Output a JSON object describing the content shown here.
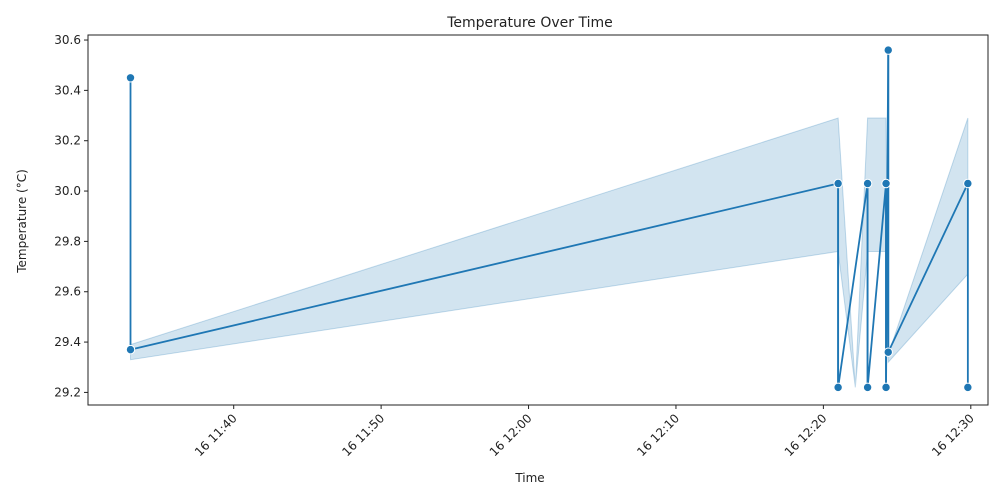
{
  "chart_data": {
    "type": "line",
    "title": "Temperature Over Time",
    "xlabel": "Time",
    "ylabel": "Temperature (°C)",
    "x_range": [
      "16 11:30:07",
      "16 12:31:10"
    ],
    "ylim": [
      29.15,
      30.62
    ],
    "y_ticks": [
      "29.2",
      "29.4",
      "29.6",
      "29.8",
      "30.0",
      "30.2",
      "30.4",
      "30.6"
    ],
    "x_ticks": [
      {
        "label": "16 11:40",
        "t": "11:40"
      },
      {
        "label": "16 11:50",
        "t": "11:50"
      },
      {
        "label": "16 12:00",
        "t": "12:00"
      },
      {
        "label": "16 12:10",
        "t": "12:10"
      },
      {
        "label": "16 12:20",
        "t": "12:20"
      },
      {
        "label": "16 12:30",
        "t": "12:30"
      }
    ],
    "grid": false,
    "colors": {
      "line": "#1f77b4",
      "band": "#1f77b4"
    },
    "points": [
      {
        "x": "11:33:00",
        "y": 30.45
      },
      {
        "x": "11:33:00",
        "y": 29.37
      },
      {
        "x": "12:21:00",
        "y": 30.03
      },
      {
        "x": "12:21:00",
        "y": 29.22
      },
      {
        "x": "12:23:00",
        "y": 30.03
      },
      {
        "x": "12:23:00",
        "y": 29.22
      },
      {
        "x": "12:24:15",
        "y": 30.03
      },
      {
        "x": "12:24:15",
        "y": 29.22
      },
      {
        "x": "12:24:24",
        "y": 30.56
      },
      {
        "x": "12:24:24",
        "y": 29.36
      },
      {
        "x": "12:29:48",
        "y": 30.03
      },
      {
        "x": "12:29:48",
        "y": 29.22
      }
    ],
    "mean_line": [
      {
        "x": "11:33:00",
        "y": 29.37
      },
      {
        "x": "12:21:00",
        "y": 30.03
      },
      {
        "x": "12:21:00",
        "y": 29.22
      },
      {
        "x": "12:23:00",
        "y": 30.03
      },
      {
        "x": "12:23:00",
        "y": 29.22
      },
      {
        "x": "12:24:15",
        "y": 30.03
      },
      {
        "x": "12:24:15",
        "y": 29.22
      },
      {
        "x": "12:24:24",
        "y": 30.56
      },
      {
        "x": "12:24:24",
        "y": 29.36
      },
      {
        "x": "12:29:48",
        "y": 30.03
      }
    ],
    "confidence_band": [
      {
        "x": "11:33:00",
        "lo": 29.33,
        "hi": 29.39
      },
      {
        "x": "12:21:00",
        "lo": 29.76,
        "hi": 30.29
      },
      {
        "x": "12:22:10",
        "lo": 29.22,
        "hi": 29.22
      },
      {
        "x": "12:23:00",
        "lo": 29.76,
        "hi": 30.29
      },
      {
        "x": "12:24:15",
        "lo": 29.76,
        "hi": 30.29
      },
      {
        "x": "12:24:24",
        "lo": 29.32,
        "hi": 29.35
      },
      {
        "x": "12:29:48",
        "lo": 29.67,
        "hi": 30.29
      }
    ]
  }
}
